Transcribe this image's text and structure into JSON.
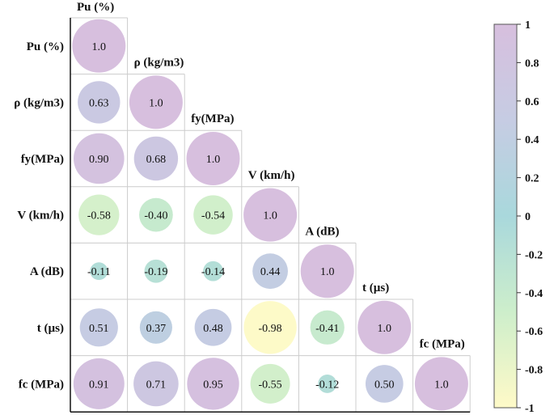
{
  "chart_data": {
    "type": "heatmap",
    "title": "",
    "variables": [
      "Pu (%)",
      "ρ (kg/m3)",
      "fy(MPa)",
      "V (km/h)",
      "A (dB)",
      "t (µs)",
      "fc (MPa)"
    ],
    "matrix_lower": [
      [
        "1.0"
      ],
      [
        "0.63",
        "1.0"
      ],
      [
        "0.90",
        "0.68",
        "1.0"
      ],
      [
        "-0.58",
        "-0.40",
        "-0.54",
        "1.0"
      ],
      [
        "-0.11",
        "-0.19",
        "-0.14",
        "0.44",
        "1.0"
      ],
      [
        "0.51",
        "0.37",
        "0.48",
        "-0.98",
        "-0.41",
        "1.0"
      ],
      [
        "0.91",
        "0.71",
        "0.95",
        "-0.55",
        "-0.12",
        "0.50",
        "1.0"
      ]
    ],
    "colorbar": {
      "range": [
        -1,
        1
      ],
      "ticks": [
        "1",
        "0.8",
        "0.6",
        "0.4",
        "0.2",
        "0",
        "-0.2",
        "-0.4",
        "-0.6",
        "-0.8",
        "-1"
      ],
      "colors": [
        "#fffac8",
        "#cdeecb",
        "#a9d8dc",
        "#c6cce3",
        "#d7bfde"
      ]
    },
    "marker": "circle sized by |r|, colored by r",
    "legend": "right"
  }
}
